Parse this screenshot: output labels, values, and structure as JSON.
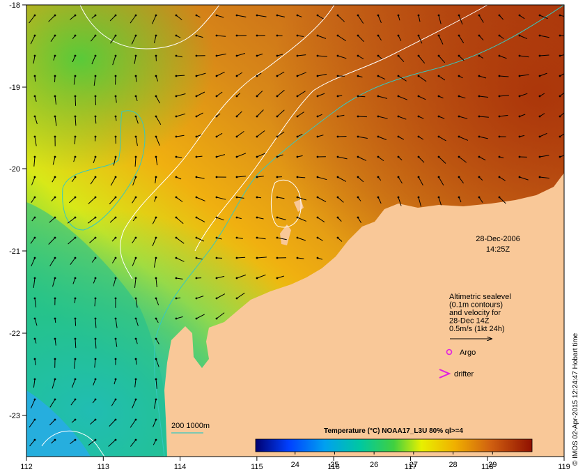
{
  "map": {
    "lon_ticks": [
      "112",
      "113",
      "114",
      "115",
      "116",
      "117",
      "118",
      "119"
    ],
    "lat_ticks": [
      "-18",
      "-19",
      "-20",
      "-21",
      "-22",
      "-23"
    ],
    "date_line": "28-Dec-2006",
    "time_line": "14:25Z",
    "legend_lines": [
      "Altimetric sealevel",
      "(0.1m contours)",
      "and velocity for",
      "28-Dec 14Z",
      "0.5m/s (1kt 24h)"
    ],
    "argo_label": "Argo",
    "drifter_label": "drifter",
    "bathy_label": "200  1000m",
    "colorbar_title": "Temperature (°C) NOAA17_L3U 80% ql>=4",
    "colorbar_ticks": [
      "24",
      "25",
      "26",
      "27",
      "28",
      "29"
    ],
    "credit": "© IMOS 02-Apr-2015 12:24:47 Hobart time",
    "colors": {
      "land": "#f9c898",
      "contour": "#ffffff",
      "bathymetry": "#36c8c0",
      "argo": "#e020e0",
      "drifter": "#e020e0"
    }
  }
}
